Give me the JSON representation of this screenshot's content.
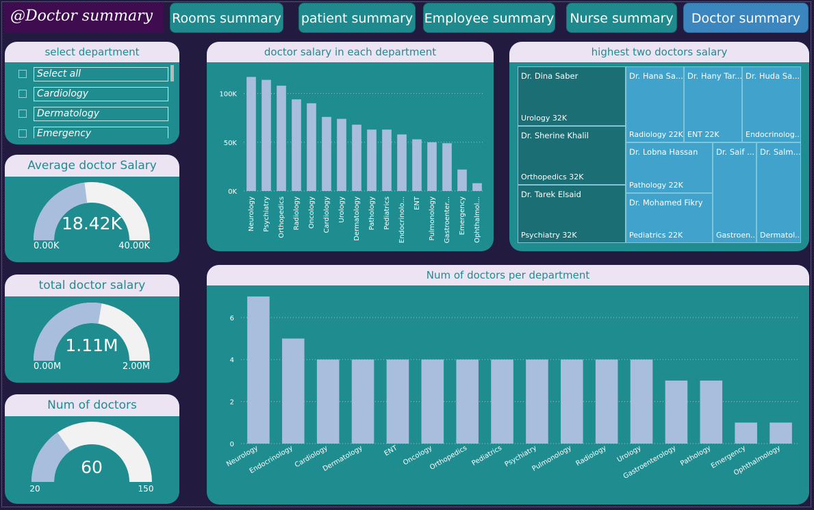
{
  "title": "@Doctor summary",
  "nav": [
    {
      "label": "Rooms summary",
      "active": false
    },
    {
      "label": "patient summary",
      "active": false
    },
    {
      "label": "Employee summary",
      "active": false
    },
    {
      "label": "Nurse summary",
      "active": false
    },
    {
      "label": "Doctor summary",
      "active": true
    }
  ],
  "slicer": {
    "title": "select department",
    "items": [
      "Select all",
      "Cardiology",
      "Dermatology",
      "Emergency"
    ]
  },
  "gauges": {
    "avg": {
      "title": "Average doctor Salary",
      "value_label": "18.42K",
      "min_label": "0.00K",
      "max_label": "40.00K",
      "value": 18.42,
      "min": 0,
      "max": 40
    },
    "total": {
      "title": "total doctor salary",
      "value_label": "1.11M",
      "min_label": "0.00M",
      "max_label": "2.00M",
      "value": 1.11,
      "min": 0,
      "max": 2
    },
    "count": {
      "title": "Num of doctors",
      "value_label": "60",
      "min_label": "20",
      "max_label": "150",
      "value": 60,
      "min": 20,
      "max": 150
    }
  },
  "colors": {
    "teal": "#1f8c90",
    "bar": "#a9bedc",
    "gauge_fill": "#a9bedc",
    "gauge_track": "#f2f2f2",
    "header": "#ece3f3",
    "accent": "#3b86bf"
  },
  "chart_data": [
    {
      "type": "bar",
      "title": "doctor salary in each department",
      "categories": [
        "Neurology",
        "Psychiatry",
        "Orthopedics",
        "Radiology",
        "Oncology",
        "Cardiology",
        "Urology",
        "Dermatology",
        "Pathology",
        "Pediatrics",
        "Endocrinolo...",
        "ENT",
        "Pulmonology",
        "Gastroenter...",
        "Emergency",
        "Ophthalmol..."
      ],
      "values": [
        117000,
        114000,
        108000,
        94000,
        90000,
        76000,
        74000,
        68000,
        63000,
        63000,
        58000,
        53000,
        50000,
        49000,
        22000,
        8000
      ],
      "yticks": [
        "0K",
        "50K",
        "100K"
      ],
      "ylim": [
        0,
        125000
      ],
      "grid": true
    },
    {
      "type": "bar",
      "title": "Num of doctors per department",
      "categories": [
        "Neurology",
        "Endocrinology",
        "Cardiology",
        "Dermatology",
        "ENT",
        "Oncology",
        "Orthopedics",
        "Pediatrics",
        "Psychiatry",
        "Pulmonology",
        "Radiology",
        "Urology",
        "Gastroenterology",
        "Pathology",
        "Emergency",
        "Ophthalmology"
      ],
      "values": [
        7,
        5,
        4,
        4,
        4,
        4,
        4,
        4,
        4,
        4,
        4,
        4,
        3,
        3,
        1,
        1
      ],
      "yticks": [
        "0",
        "2",
        "4",
        "6"
      ],
      "ylim": [
        0,
        7.2
      ],
      "grid": true
    }
  ],
  "treemap": {
    "title": "highest two doctors salary",
    "tiles": [
      {
        "name": "Dr. Dina Saber",
        "label": "Urology 32K",
        "shade": "dark"
      },
      {
        "name": "Dr. Sherine Khalil",
        "label": "Orthopedics 32K",
        "shade": "dark"
      },
      {
        "name": "Dr. Tarek Elsaid",
        "label": "Psychiatry 32K",
        "shade": "dark"
      },
      {
        "name": "Dr. Hana Sa...",
        "label": "Radiology 22K",
        "shade": "light"
      },
      {
        "name": "Dr. Hany Tar...",
        "label": "ENT 22K",
        "shade": "light"
      },
      {
        "name": "Dr. Huda Sa...",
        "label": "Endocrinolog...",
        "shade": "light"
      },
      {
        "name": "Dr. Lobna Hassan",
        "label": "Pathology 22K",
        "shade": "light"
      },
      {
        "name": "Dr. Mohamed Fikry",
        "label": "Pediatrics 22K",
        "shade": "light"
      },
      {
        "name": "Dr. Saif ...",
        "label": "Gastroen...",
        "shade": "light"
      },
      {
        "name": "Dr. Salm...",
        "label": "Dermatol...",
        "shade": "light"
      }
    ]
  }
}
